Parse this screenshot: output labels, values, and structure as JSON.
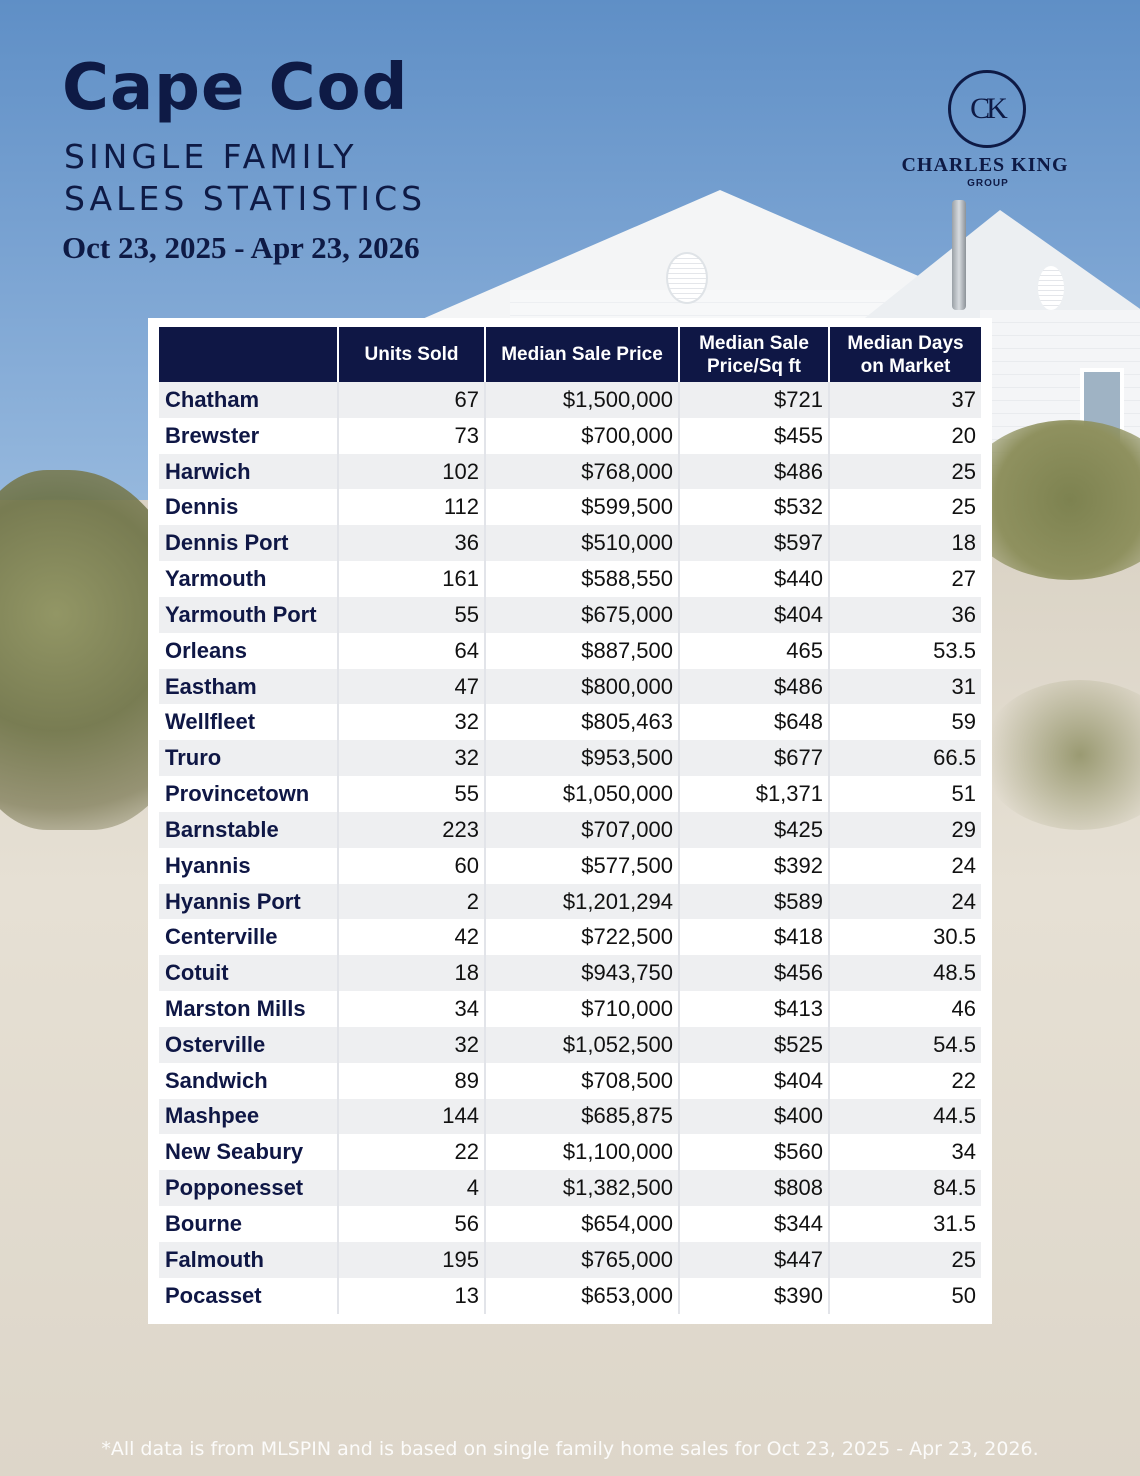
{
  "header": {
    "title": "Cape Cod",
    "subtitle_line1": "SINGLE FAMILY",
    "subtitle_line2": "SALES STATISTICS",
    "date_range": "Oct 23, 2025 - Apr 23, 2026"
  },
  "logo": {
    "monogram": "CK",
    "brand": "CHARLES KING",
    "group": "GROUP"
  },
  "table": {
    "columns": [
      "",
      "Units Sold",
      "Median Sale Price",
      "Median Sale Price/Sq ft",
      "Median Days on Market"
    ],
    "rows": [
      [
        "Chatham",
        "67",
        "$1,500,000",
        "$721",
        "37"
      ],
      [
        "Brewster",
        "73",
        "$700,000",
        "$455",
        "20"
      ],
      [
        "Harwich",
        "102",
        "$768,000",
        "$486",
        "25"
      ],
      [
        "Dennis",
        "112",
        "$599,500",
        "$532",
        "25"
      ],
      [
        "Dennis Port",
        "36",
        "$510,000",
        "$597",
        "18"
      ],
      [
        "Yarmouth",
        "161",
        "$588,550",
        "$440",
        "27"
      ],
      [
        "Yarmouth Port",
        "55",
        "$675,000",
        "$404",
        "36"
      ],
      [
        "Orleans",
        "64",
        "$887,500",
        "465",
        "53.5"
      ],
      [
        "Eastham",
        "47",
        "$800,000",
        "$486",
        "31"
      ],
      [
        "Wellfleet",
        "32",
        "$805,463",
        "$648",
        "59"
      ],
      [
        "Truro",
        "32",
        "$953,500",
        "$677",
        "66.5"
      ],
      [
        "Provincetown",
        "55",
        "$1,050,000",
        "$1,371",
        "51"
      ],
      [
        "Barnstable",
        "223",
        "$707,000",
        "$425",
        "29"
      ],
      [
        "Hyannis",
        "60",
        "$577,500",
        "$392",
        "24"
      ],
      [
        "Hyannis Port",
        "2",
        "$1,201,294",
        "$589",
        "24"
      ],
      [
        "Centerville",
        "42",
        "$722,500",
        "$418",
        "30.5"
      ],
      [
        "Cotuit",
        "18",
        "$943,750",
        "$456",
        "48.5"
      ],
      [
        "Marston Mills",
        "34",
        "$710,000",
        "$413",
        "46"
      ],
      [
        "Osterville",
        "32",
        "$1,052,500",
        "$525",
        "54.5"
      ],
      [
        "Sandwich",
        "89",
        "$708,500",
        "$404",
        "22"
      ],
      [
        "Mashpee",
        "144",
        "$685,875",
        "$400",
        "44.5"
      ],
      [
        "New Seabury",
        "22",
        "$1,100,000",
        "$560",
        "34"
      ],
      [
        "Popponesset",
        "4",
        "$1,382,500",
        "$808",
        "84.5"
      ],
      [
        "Bourne",
        "56",
        "$654,000",
        "$344",
        "31.5"
      ],
      [
        "Falmouth",
        "195",
        "$765,000",
        "$447",
        "25"
      ],
      [
        "Pocasset",
        "13",
        "$653,000",
        "$390",
        "50"
      ]
    ]
  },
  "footnote": "*All data is from MLSPIN and is based on single family home sales for Oct 23, 2025 - Apr 23, 2026."
}
